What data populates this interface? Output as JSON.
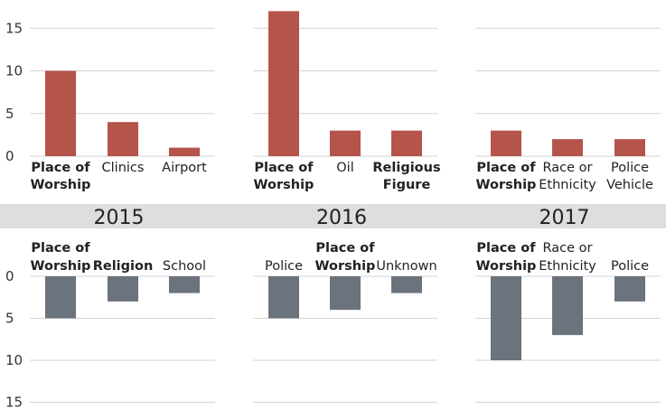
{
  "chart_data": {
    "type": "bar",
    "colors": {
      "top": "#b5544b",
      "bottom": "#6b737c",
      "band": "#dedede"
    },
    "top_axis": {
      "ylim": [
        0,
        15
      ],
      "ticks": [
        0,
        5,
        10,
        15
      ]
    },
    "bottom_axis": {
      "ylim": [
        0,
        15
      ],
      "ticks": [
        0,
        5,
        10,
        15
      ],
      "direction": "downward"
    },
    "years": [
      "2015",
      "2016",
      "2017"
    ],
    "panels": [
      {
        "year": "2015",
        "top": [
          {
            "label": [
              "Place of",
              "Worship"
            ],
            "value": 10,
            "bold": true
          },
          {
            "label": [
              "Clinics"
            ],
            "value": 4,
            "bold": false
          },
          {
            "label": [
              "Airport"
            ],
            "value": 1,
            "bold": false
          }
        ],
        "bottom": [
          {
            "label": [
              "Place of",
              "Worship"
            ],
            "value": 5,
            "bold": true
          },
          {
            "label": [
              "Religion"
            ],
            "value": 3,
            "bold": true
          },
          {
            "label": [
              "School"
            ],
            "value": 2,
            "bold": false
          }
        ]
      },
      {
        "year": "2016",
        "top": [
          {
            "label": [
              "Place of",
              "Worship"
            ],
            "value": 17,
            "bold": true
          },
          {
            "label": [
              "Oil"
            ],
            "value": 3,
            "bold": false
          },
          {
            "label": [
              "Religious",
              "Figure"
            ],
            "value": 3,
            "bold": true
          }
        ],
        "bottom": [
          {
            "label": [
              "Police"
            ],
            "value": 5,
            "bold": false
          },
          {
            "label": [
              "Place of",
              "Worship"
            ],
            "value": 4,
            "bold": true
          },
          {
            "label": [
              "Unknown"
            ],
            "value": 2,
            "bold": false
          }
        ]
      },
      {
        "year": "2017",
        "top": [
          {
            "label": [
              "Place of",
              "Worship"
            ],
            "value": 3,
            "bold": true
          },
          {
            "label": [
              "Race or",
              "Ethnicity"
            ],
            "value": 2,
            "bold": false
          },
          {
            "label": [
              "Police",
              "Vehicle"
            ],
            "value": 2,
            "bold": false
          }
        ],
        "bottom": [
          {
            "label": [
              "Place of",
              "Worship"
            ],
            "value": 10,
            "bold": true
          },
          {
            "label": [
              "Race or",
              "Ethnicity"
            ],
            "value": 7,
            "bold": false
          },
          {
            "label": [
              "Police"
            ],
            "value": 3,
            "bold": false
          }
        ]
      }
    ]
  }
}
